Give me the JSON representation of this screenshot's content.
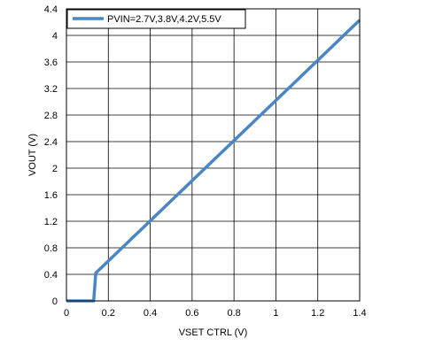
{
  "chart_data": {
    "type": "line",
    "title": "",
    "xlabel": "VSET CTRL (V)",
    "ylabel": "VOUT (V)",
    "xlim": [
      0,
      1.4
    ],
    "ylim": [
      0,
      4.4
    ],
    "x_ticks": [
      "0",
      "0.2",
      "0.4",
      "0.6",
      "0.8",
      "1",
      "1.2",
      "1.4"
    ],
    "y_ticks": [
      "0",
      "0.4",
      "0.8",
      "1.2",
      "1.6",
      "2",
      "2.4",
      "2.8",
      "3.2",
      "3.6",
      "4",
      "4.4"
    ],
    "grid": true,
    "legend_position": "top-left",
    "series": [
      {
        "name": "PVIN=2.7V,3.8V,4.2V,5.5V",
        "color": "#4a86c5",
        "x": [
          0,
          0.13,
          0.14,
          1.4
        ],
        "y": [
          0,
          0,
          0.42,
          4.23
        ]
      }
    ]
  }
}
